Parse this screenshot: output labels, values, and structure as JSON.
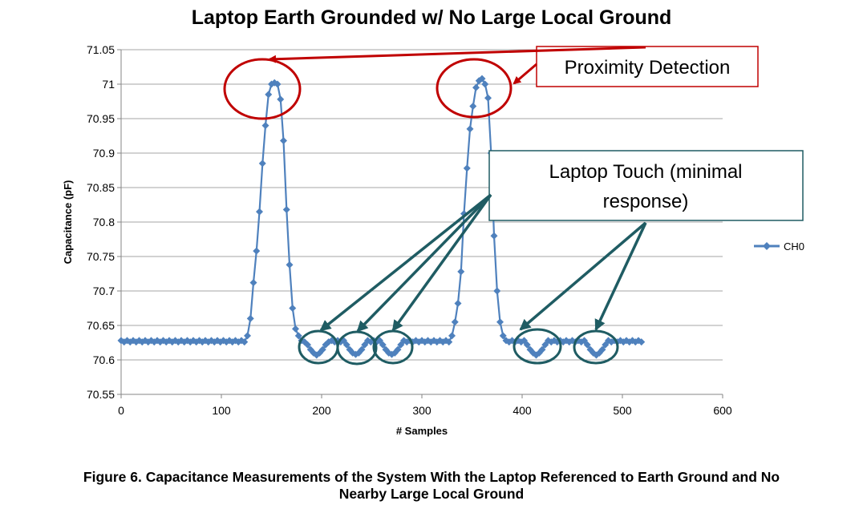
{
  "chart_data": {
    "type": "line",
    "title": "Laptop Earth Grounded w/ No Large Local Ground",
    "xlabel": "# Samples",
    "ylabel": "Capacitance  (pF)",
    "xlim": [
      0,
      600
    ],
    "ylim": [
      70.55,
      71.05
    ],
    "x_ticks": [
      0,
      100,
      200,
      300,
      400,
      500,
      600
    ],
    "y_ticks": [
      70.55,
      70.6,
      70.65,
      70.7,
      70.75,
      70.8,
      70.85,
      70.9,
      70.95,
      71,
      71.05
    ],
    "y_tick_labels": [
      "70.55",
      "70.6",
      "70.65",
      "70.7",
      "70.75",
      "70.8",
      "70.85",
      "70.9",
      "70.95",
      "71",
      "71.05"
    ],
    "grid": "horizontal",
    "legend": "right",
    "series": [
      {
        "name": "CH0",
        "color": "#4f81bd",
        "marker": "diamond",
        "x_start": 0,
        "x_step": 3,
        "baseline": 70.627,
        "segments": [
          {
            "x_start": 126,
            "values": [
              70.635,
              70.66,
              70.712,
              70.758,
              70.815,
              70.885,
              70.94,
              70.985,
              71.0,
              71.002,
              71.0,
              70.978,
              70.918,
              70.818,
              70.738,
              70.675,
              70.645,
              70.635
            ]
          },
          {
            "x_start": 186,
            "values": [
              70.622,
              70.615,
              70.61,
              70.607,
              70.61,
              70.615,
              70.622
            ]
          },
          {
            "x_start": 225,
            "values": [
              70.622,
              70.615,
              70.61,
              70.608,
              70.61,
              70.615,
              70.622
            ]
          },
          {
            "x_start": 261,
            "values": [
              70.622,
              70.615,
              70.61,
              70.608,
              70.61,
              70.615,
              70.622
            ]
          },
          {
            "x_start": 330,
            "values": [
              70.635,
              70.655,
              70.682,
              70.728,
              70.812,
              70.878,
              70.935,
              70.968,
              70.995,
              71.005,
              71.008,
              71.0,
              70.98,
              70.9,
              70.78,
              70.7,
              70.655,
              70.635
            ]
          },
          {
            "x_start": 405,
            "values": [
              70.622,
              70.615,
              70.61,
              70.607,
              70.61,
              70.615,
              70.622
            ]
          },
          {
            "x_start": 465,
            "values": [
              70.622,
              70.615,
              70.61,
              70.607,
              70.61,
              70.615,
              70.622
            ]
          }
        ],
        "x_end": 519
      }
    ],
    "annotations": {
      "proximity_label": "Proximity Detection",
      "touch_label_line1": "Laptop Touch (minimal",
      "touch_label_line2": "response)",
      "proximity_color": "#c00000",
      "touch_color": "#1f5c63"
    }
  },
  "caption": {
    "line1": "Figure 6. Capacitance Measurements of the System With the Laptop Referenced to Earth Ground and No",
    "line2": "Nearby Large Local Ground"
  }
}
